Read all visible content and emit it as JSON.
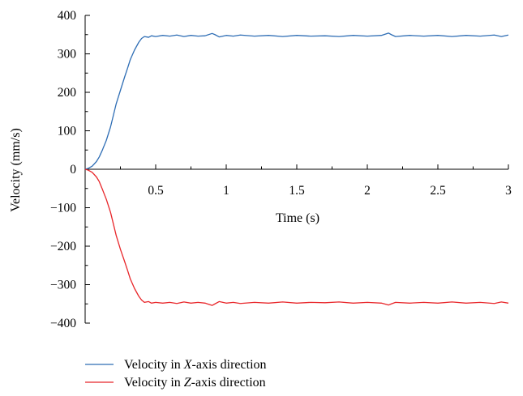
{
  "chart_data": {
    "type": "line",
    "title": "",
    "xlabel": "Time (s)",
    "ylabel": "Velocity (mm/s)",
    "xlim": [
      0,
      3
    ],
    "ylim": [
      -400,
      400
    ],
    "x_ticks": [
      {
        "value": 0.5,
        "label": "0.5"
      },
      {
        "value": 1,
        "label": "1"
      },
      {
        "value": 1.5,
        "label": "1.5"
      },
      {
        "value": 2,
        "label": "2"
      },
      {
        "value": 2.5,
        "label": "2.5"
      },
      {
        "value": 3,
        "label": "3"
      }
    ],
    "y_ticks": [
      {
        "value": 400,
        "label": "400"
      },
      {
        "value": 300,
        "label": "300"
      },
      {
        "value": 200,
        "label": "200"
      },
      {
        "value": 100,
        "label": "100"
      },
      {
        "value": 0,
        "label": "0"
      },
      {
        "value": -100,
        "label": "−100"
      },
      {
        "value": -200,
        "label": "−200"
      },
      {
        "value": -300,
        "label": "−300"
      },
      {
        "value": -400,
        "label": "−400"
      }
    ],
    "grid": false,
    "legend_position": "bottom",
    "series": [
      {
        "name": "Velocity in X-axis direction",
        "legend_prefix": "Velocity in ",
        "legend_axis": "X",
        "legend_suffix": "-axis direction",
        "color": "#2f6eb5",
        "x": [
          0,
          0.02,
          0.05,
          0.08,
          0.1,
          0.12,
          0.15,
          0.18,
          0.2,
          0.22,
          0.25,
          0.28,
          0.3,
          0.32,
          0.35,
          0.38,
          0.4,
          0.42,
          0.45,
          0.47,
          0.5,
          0.55,
          0.6,
          0.65,
          0.7,
          0.75,
          0.8,
          0.85,
          0.9,
          0.92,
          0.95,
          1.0,
          1.05,
          1.1,
          1.2,
          1.3,
          1.4,
          1.5,
          1.6,
          1.7,
          1.8,
          1.9,
          2.0,
          2.1,
          2.15,
          2.17,
          2.2,
          2.3,
          2.4,
          2.5,
          2.6,
          2.7,
          2.8,
          2.9,
          2.95,
          3.0
        ],
        "values": [
          0,
          2,
          8,
          20,
          32,
          48,
          75,
          110,
          140,
          170,
          205,
          240,
          262,
          285,
          310,
          330,
          340,
          345,
          343,
          347,
          345,
          348,
          346,
          349,
          345,
          348,
          346,
          347,
          353,
          350,
          344,
          348,
          346,
          349,
          346,
          348,
          345,
          348,
          346,
          347,
          345,
          348,
          346,
          348,
          354,
          350,
          345,
          348,
          346,
          348,
          345,
          348,
          346,
          349,
          345,
          349
        ]
      },
      {
        "name": "Velocity in Z-axis direction",
        "legend_prefix": "Velocity in ",
        "legend_axis": "Z",
        "legend_suffix": "-axis direction",
        "color": "#e8262a",
        "x": [
          0,
          0.02,
          0.05,
          0.08,
          0.1,
          0.12,
          0.15,
          0.18,
          0.2,
          0.22,
          0.25,
          0.28,
          0.3,
          0.32,
          0.35,
          0.38,
          0.4,
          0.42,
          0.45,
          0.47,
          0.5,
          0.55,
          0.6,
          0.65,
          0.7,
          0.75,
          0.8,
          0.85,
          0.9,
          0.92,
          0.95,
          1.0,
          1.05,
          1.1,
          1.2,
          1.3,
          1.4,
          1.5,
          1.6,
          1.7,
          1.8,
          1.9,
          2.0,
          2.1,
          2.15,
          2.17,
          2.2,
          2.3,
          2.4,
          2.5,
          2.6,
          2.7,
          2.8,
          2.9,
          2.95,
          3.0
        ],
        "values": [
          0,
          -2,
          -8,
          -20,
          -32,
          -50,
          -78,
          -112,
          -142,
          -172,
          -208,
          -240,
          -262,
          -285,
          -310,
          -330,
          -340,
          -346,
          -344,
          -348,
          -346,
          -348,
          -346,
          -349,
          -345,
          -348,
          -346,
          -348,
          -354,
          -350,
          -344,
          -348,
          -346,
          -349,
          -346,
          -348,
          -345,
          -348,
          -346,
          -347,
          -345,
          -348,
          -346,
          -348,
          -353,
          -350,
          -346,
          -348,
          -346,
          -348,
          -345,
          -348,
          -346,
          -349,
          -345,
          -348
        ]
      }
    ]
  }
}
